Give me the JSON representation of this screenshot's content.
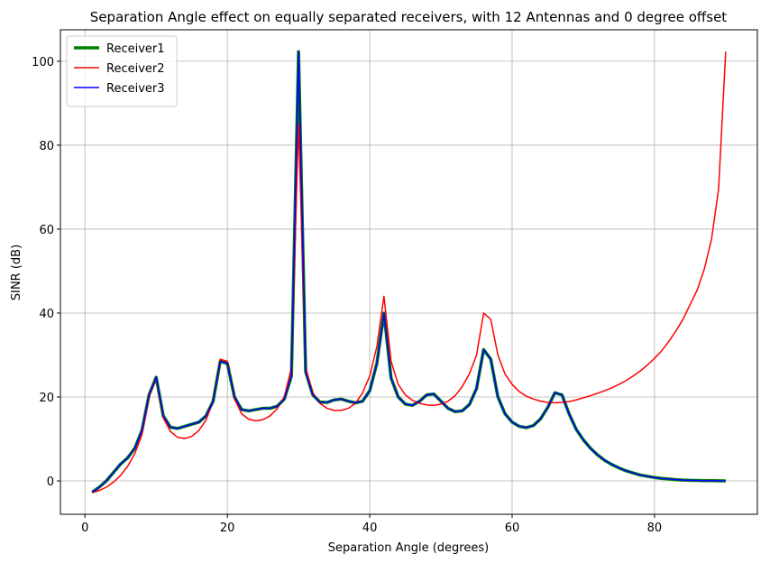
{
  "chart_data": {
    "type": "line",
    "title": "Separation Angle effect on equally separated receivers, with 12 Antennas and 0 degree offset",
    "x_label": "Separation Angle (degrees)",
    "y_label": "SINR (dB)",
    "x": [
      1,
      2,
      3,
      4,
      5,
      6,
      7,
      8,
      9,
      10,
      11,
      12,
      13,
      14,
      15,
      16,
      17,
      18,
      19,
      20,
      21,
      22,
      23,
      24,
      25,
      26,
      27,
      28,
      29,
      30,
      31,
      32,
      33,
      34,
      35,
      36,
      37,
      38,
      39,
      40,
      41,
      42,
      43,
      44,
      45,
      46,
      47,
      48,
      49,
      50,
      51,
      52,
      53,
      54,
      55,
      56,
      57,
      58,
      59,
      60,
      61,
      62,
      63,
      64,
      65,
      66,
      67,
      68,
      69,
      70,
      71,
      72,
      73,
      74,
      75,
      76,
      77,
      78,
      79,
      80,
      81,
      82,
      83,
      84,
      85,
      86,
      87,
      88,
      89,
      90
    ],
    "series": [
      {
        "name": "Receiver1",
        "color": "#008000",
        "width": 3.5,
        "values": [
          -2.7,
          -1.5,
          0,
          2,
          4,
          5.5,
          7.8,
          12,
          20.5,
          24.7,
          15.5,
          12.8,
          12.5,
          13,
          13.5,
          14,
          15.5,
          19,
          28.5,
          28,
          20,
          17,
          16.7,
          17,
          17.3,
          17.3,
          17.8,
          19.5,
          25,
          102.3,
          26,
          20.5,
          18.8,
          18.7,
          19.3,
          19.5,
          19,
          18.6,
          19,
          21.5,
          28,
          40,
          24.5,
          20,
          18.3,
          18,
          19,
          20.5,
          20.7,
          19,
          17.3,
          16.5,
          16.7,
          18.2,
          22,
          31.3,
          29,
          20,
          16,
          14,
          13,
          12.7,
          13.2,
          14.8,
          17.5,
          21,
          20.5,
          16,
          12.3,
          9.8,
          7.8,
          6.2,
          4.9,
          3.9,
          3.1,
          2.4,
          1.9,
          1.4,
          1.1,
          0.8,
          0.6,
          0.45,
          0.3,
          0.2,
          0.15,
          0.1,
          0.07,
          0.05,
          0.03,
          0
        ]
      },
      {
        "name": "Receiver2",
        "color": "#ff0000",
        "width": 1.5,
        "values": [
          -2.8,
          -2.3,
          -1.5,
          -0.3,
          1.3,
          3.5,
          6.5,
          11,
          20,
          24.5,
          15,
          11.8,
          10.4,
          10.1,
          10.6,
          12,
          14.5,
          19,
          29,
          28.5,
          19.5,
          16,
          14.7,
          14.3,
          14.6,
          15.5,
          17.2,
          20,
          27,
          85,
          27,
          21,
          18.5,
          17.3,
          16.8,
          16.8,
          17.3,
          18.5,
          21,
          25,
          32,
          44,
          28.5,
          23,
          20.5,
          19.2,
          18.5,
          18.1,
          18,
          18.3,
          19,
          20.3,
          22.5,
          25.5,
          30,
          40,
          38.5,
          30,
          25.5,
          23,
          21.3,
          20.2,
          19.5,
          19,
          18.7,
          18.6,
          18.7,
          18.9,
          19.3,
          19.8,
          20.3,
          20.9,
          21.5,
          22.2,
          23,
          23.9,
          25,
          26.2,
          27.6,
          29.2,
          31,
          33.2,
          35.7,
          38.5,
          42,
          45.5,
          50.5,
          57.5,
          69.5,
          102.3
        ]
      },
      {
        "name": "Receiver3",
        "color": "#0000ff",
        "width": 1.5,
        "values": [
          -2.7,
          -1.5,
          0,
          2,
          4,
          5.5,
          7.8,
          12,
          20.5,
          24.7,
          15.5,
          12.8,
          12.5,
          13,
          13.5,
          14,
          15.5,
          19,
          28.5,
          28,
          20,
          17,
          16.7,
          17,
          17.3,
          17.3,
          17.8,
          19.5,
          25,
          102.3,
          26,
          20.5,
          18.8,
          18.7,
          19.3,
          19.5,
          19,
          18.6,
          19,
          21.5,
          28,
          40,
          24.5,
          20,
          18.3,
          18,
          19,
          20.5,
          20.7,
          19,
          17.3,
          16.5,
          16.7,
          18.2,
          22,
          31.3,
          29,
          20,
          16,
          14,
          13,
          12.7,
          13.2,
          14.8,
          17.5,
          21,
          20.5,
          16,
          12.3,
          9.8,
          7.8,
          6.2,
          4.9,
          3.9,
          3.1,
          2.4,
          1.9,
          1.4,
          1.1,
          0.8,
          0.6,
          0.45,
          0.3,
          0.2,
          0.15,
          0.1,
          0.07,
          0.05,
          0.03,
          0
        ]
      }
    ],
    "xlim": [
      -3.45,
      94.45
    ],
    "ylim": [
      -7.95,
      107.5
    ],
    "xticks": [
      0,
      20,
      40,
      60,
      80
    ],
    "yticks": [
      0,
      20,
      40,
      60,
      80,
      100
    ],
    "grid": true,
    "legend": "upper-left"
  }
}
